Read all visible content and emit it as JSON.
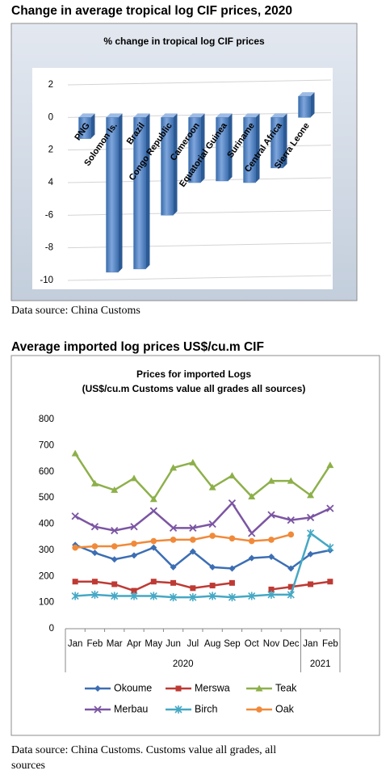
{
  "chart_data": [
    {
      "type": "bar3d",
      "heading": "Change in average tropical log CIF prices, 2020",
      "title": "% change in tropical log CIF prices",
      "source": "Data source: China Customs",
      "categories": [
        "PNG",
        "Solomon Is.",
        "Brazil",
        "Congo Republic",
        "Cameroon",
        "Equatorial Guinea",
        "Suriname",
        "Central Africa",
        "Sierra Leone"
      ],
      "values": [
        -1.3,
        -9.5,
        -9.3,
        -6.0,
        -4.0,
        -3.9,
        -4.0,
        -3.1,
        1.3
      ],
      "color": "#4f81bd",
      "ylim": [
        -10,
        2
      ],
      "yticks": [
        2,
        0,
        {
          "value": -2,
          "label": "2"
        },
        {
          "value": -4,
          "label": "4"
        },
        -6,
        -8,
        -10
      ],
      "grid": true
    },
    {
      "type": "line",
      "heading": "Average imported log prices US$/cu.m CIF",
      "title": [
        "Prices for imported Logs",
        "(US$/cu.m Customs value all grades all sources)"
      ],
      "source": [
        "Data source: China Customs. Customs value all grades, all",
        "sources"
      ],
      "categories": [
        "Jan",
        "Feb",
        "Mar",
        "Apr",
        "May",
        "Jun",
        "Jul",
        "Aug",
        "Sep",
        "Oct",
        "Nov",
        "Dec",
        "Jan",
        "Feb"
      ],
      "category_groups": [
        {
          "label": "2020",
          "count": 12
        },
        {
          "label": "2021",
          "count": 2
        }
      ],
      "series": [
        {
          "name": "Okoume",
          "color": "#3c6eb4",
          "marker": "diamond",
          "values": [
            320,
            290,
            265,
            280,
            310,
            235,
            295,
            235,
            230,
            270,
            275,
            230,
            285,
            300
          ]
        },
        {
          "name": "Merswa",
          "color": "#be3a34",
          "marker": "square",
          "values": [
            180,
            180,
            170,
            145,
            180,
            175,
            155,
            165,
            175,
            null,
            150,
            160,
            170,
            180
          ]
        },
        {
          "name": "Teak",
          "color": "#8db04a",
          "marker": "triangle",
          "values": [
            670,
            555,
            530,
            575,
            495,
            615,
            635,
            540,
            585,
            505,
            565,
            565,
            510,
            625
          ]
        },
        {
          "name": "Merbau",
          "color": "#7b55a3",
          "marker": "x",
          "values": [
            430,
            390,
            375,
            390,
            450,
            385,
            385,
            400,
            480,
            365,
            435,
            415,
            425,
            460
          ]
        },
        {
          "name": "Birch",
          "color": "#45a8c4",
          "marker": "star",
          "values": [
            125,
            130,
            125,
            125,
            125,
            120,
            120,
            125,
            120,
            125,
            130,
            130,
            365,
            310
          ]
        },
        {
          "name": "Oak",
          "color": "#f08a3a",
          "marker": "circle",
          "values": [
            310,
            315,
            315,
            325,
            335,
            340,
            340,
            355,
            345,
            335,
            340,
            360,
            null,
            null
          ]
        }
      ],
      "ylim": [
        0,
        800
      ],
      "yticks": [
        0,
        100,
        200,
        300,
        400,
        500,
        600,
        700,
        800
      ],
      "grid": false
    }
  ]
}
